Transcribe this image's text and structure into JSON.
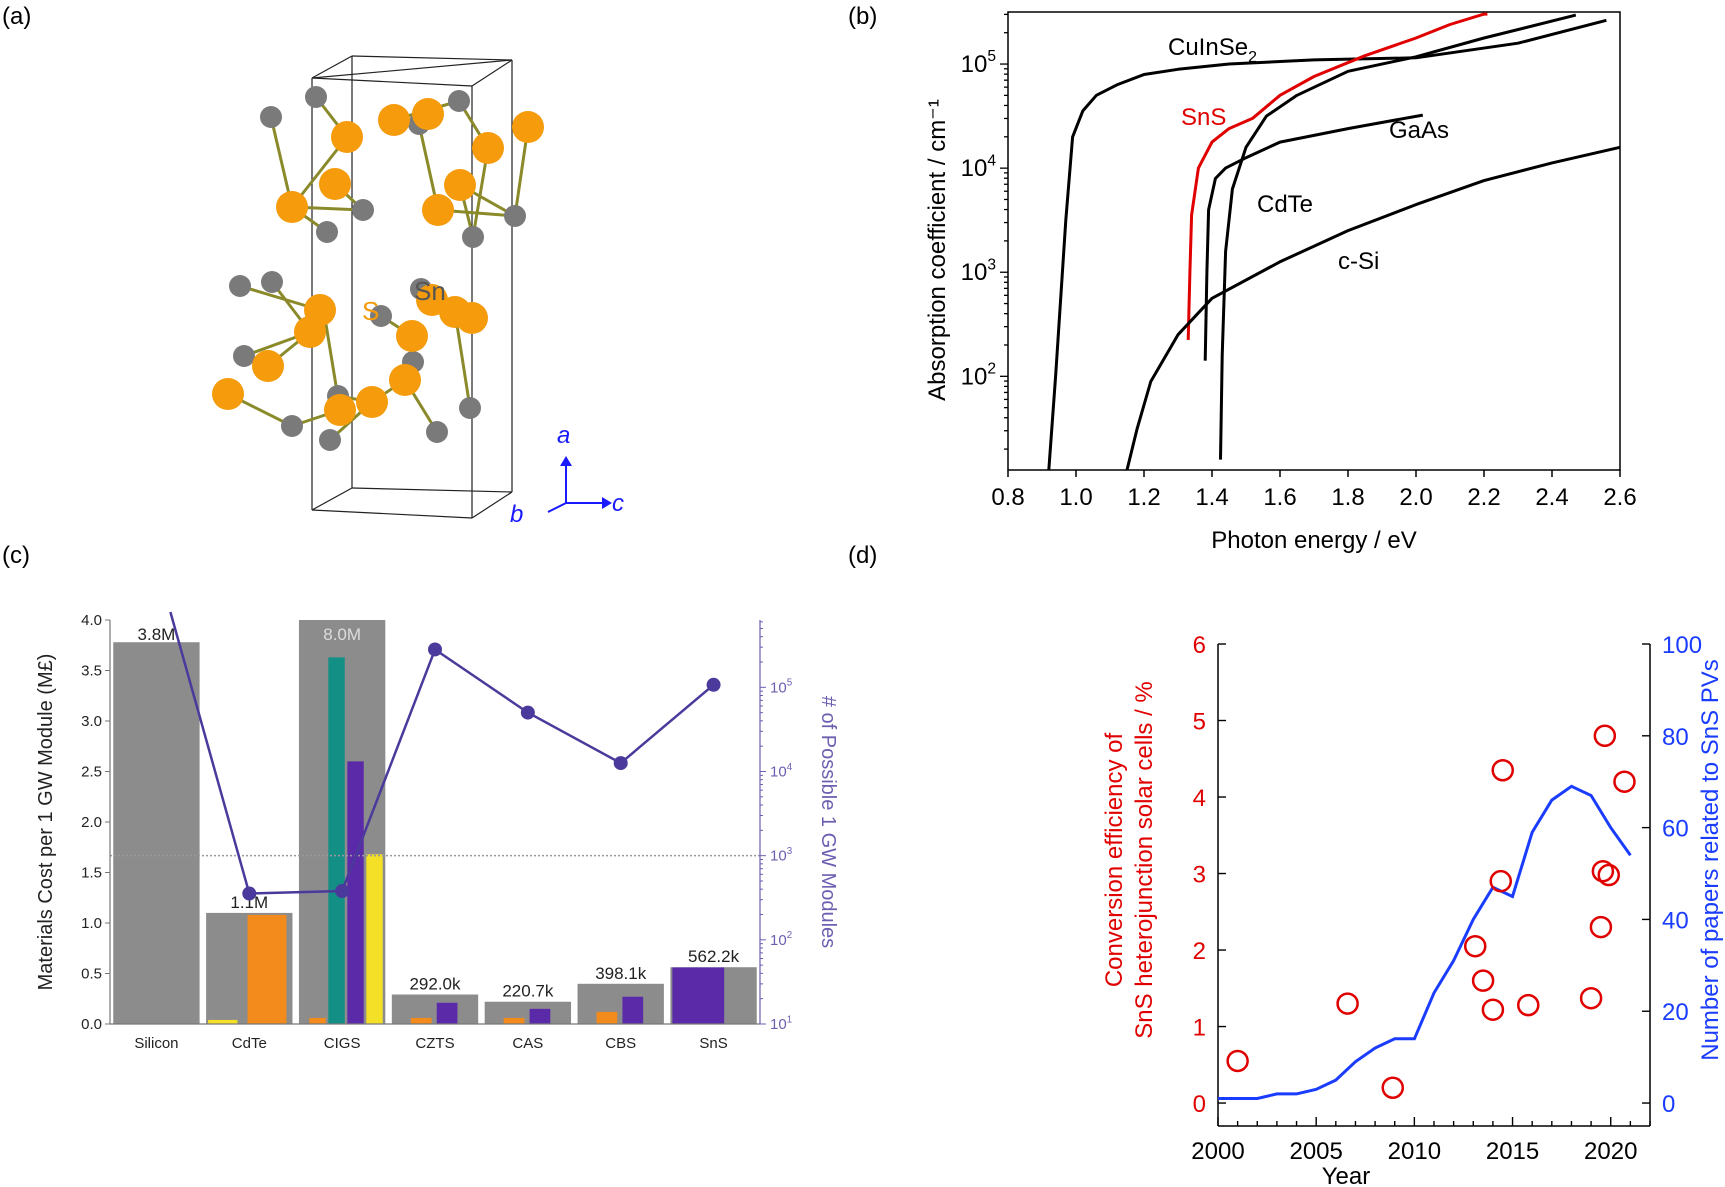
{
  "panel_labels": [
    "(a)",
    "(b)",
    "(c)",
    "(d)"
  ],
  "crystal": {
    "atom_labels": {
      "s": "S",
      "sn": "Sn"
    },
    "axes": {
      "a": "a",
      "b": "b",
      "c": "c"
    },
    "colors": {
      "s": "#f59b0c",
      "sn": "#7a7a7a",
      "bond": "#8b8a2a",
      "axes": "#1a1aff"
    }
  },
  "chart_data": [
    {
      "id": "b",
      "type": "line",
      "xlabel": "Photon energy / eV",
      "ylabel": "Absorption coefficient / cm⁻¹",
      "xlim": [
        0.8,
        2.6
      ],
      "ylim_log10": [
        1.1,
        5.5
      ],
      "yscale": "log",
      "xticks": [
        "0.8",
        "1.0",
        "1.2",
        "1.4",
        "1.6",
        "1.8",
        "2.0",
        "2.2",
        "2.4",
        "2.6"
      ],
      "yticks": [
        {
          "base": "10",
          "exp": "2",
          "v": 2
        },
        {
          "base": "10",
          "exp": "3",
          "v": 3
        },
        {
          "base": "10",
          "exp": "4",
          "v": 4
        },
        {
          "base": "10",
          "exp": "5",
          "v": 5
        }
      ],
      "series": [
        {
          "name": "CuInSe₂",
          "color": "#000000",
          "x": [
            0.92,
            0.94,
            0.97,
            0.99,
            1.02,
            1.06,
            1.12,
            1.2,
            1.3,
            1.45,
            1.7,
            2.0,
            2.3,
            2.56
          ],
          "y": [
            1.1,
            2.0,
            3.5,
            4.3,
            4.55,
            4.7,
            4.8,
            4.9,
            4.95,
            5.0,
            5.04,
            5.06,
            5.2,
            5.42
          ]
        },
        {
          "name": "SnS",
          "color": "#e00000",
          "x": [
            1.33,
            1.335,
            1.34,
            1.36,
            1.4,
            1.45,
            1.52,
            1.6,
            1.7,
            1.85,
            2.0,
            2.1,
            2.2,
            2.21
          ],
          "y": [
            2.35,
            3.0,
            3.55,
            4.0,
            4.25,
            4.38,
            4.48,
            4.7,
            4.88,
            5.08,
            5.25,
            5.38,
            5.48,
            5.48
          ]
        },
        {
          "name": "CdTe",
          "color": "#000000",
          "x": [
            1.38,
            1.385,
            1.39,
            1.41,
            1.44,
            1.5,
            1.6,
            1.8,
            2.02
          ],
          "y": [
            2.15,
            3.0,
            3.6,
            3.9,
            4.0,
            4.1,
            4.25,
            4.38,
            4.51
          ]
        },
        {
          "name": "GaAs",
          "color": "#000000",
          "x": [
            1.425,
            1.43,
            1.44,
            1.46,
            1.5,
            1.56,
            1.65,
            1.8,
            2.0,
            2.2,
            2.47
          ],
          "y": [
            1.2,
            2.2,
            3.2,
            3.8,
            4.2,
            4.5,
            4.7,
            4.93,
            5.07,
            5.25,
            5.47
          ]
        },
        {
          "name": "c-Si",
          "color": "#000000",
          "x": [
            1.15,
            1.18,
            1.22,
            1.3,
            1.4,
            1.6,
            1.8,
            2.0,
            2.2,
            2.4,
            2.6
          ],
          "y": [
            1.1,
            1.5,
            1.95,
            2.4,
            2.75,
            3.1,
            3.4,
            3.65,
            3.88,
            4.05,
            4.2
          ]
        }
      ],
      "annotations": {
        "cuinse2": "CuInSe",
        "cuinse2_sub": "2",
        "sns": "SnS",
        "gaas": "GaAs",
        "cdte": "CdTe",
        "csi": "c-Si"
      }
    },
    {
      "id": "c",
      "type": "bar",
      "ylabel": "Materials Cost per 1 GW Module (M£)",
      "y2label": "# of Possible 1 GW Modules",
      "ylim": [
        0,
        4.0
      ],
      "yticks": [
        "0.0",
        "0.5",
        "1.0",
        "1.5",
        "2.0",
        "2.5",
        "3.0",
        "3.5",
        "4.0"
      ],
      "y2lim_log10": [
        1,
        5.8
      ],
      "y2ticks": [
        {
          "base": "10",
          "exp": "1",
          "v": 1
        },
        {
          "base": "10",
          "exp": "2",
          "v": 2
        },
        {
          "base": "10",
          "exp": "3",
          "v": 3
        },
        {
          "base": "10",
          "exp": "4",
          "v": 4
        },
        {
          "base": "10",
          "exp": "5",
          "v": 5
        }
      ],
      "categories": [
        "Silicon",
        "CdTe",
        "CIGS",
        "CZTS",
        "CAS",
        "CBS",
        "SnS"
      ],
      "totals": [
        3.78,
        1.1,
        4.0,
        0.292,
        0.2207,
        0.3981,
        0.5622
      ],
      "total_labels": [
        "3.8M",
        "1.1M",
        "8.0M",
        "292.0k",
        "220.7k",
        "398.1k",
        "562.2k"
      ],
      "components": [
        [],
        [
          {
            "v": 0.04,
            "c": "#f5e028"
          },
          {
            "v": 1.08,
            "c": "#f28a1c"
          }
        ],
        [
          {
            "v": 0.06,
            "c": "#f28a1c"
          },
          {
            "v": 3.63,
            "c": "#138f85"
          },
          {
            "v": 2.6,
            "c": "#5a2aa8"
          },
          {
            "v": 1.68,
            "c": "#f5e028"
          }
        ],
        [
          {
            "v": 0.06,
            "c": "#f28a1c"
          },
          {
            "v": 0.21,
            "c": "#5a2aa8"
          }
        ],
        [
          {
            "v": 0.06,
            "c": "#f28a1c"
          },
          {
            "v": 0.15,
            "c": "#5a2aa8"
          }
        ],
        [
          {
            "v": 0.12,
            "c": "#f28a1c"
          },
          {
            "v": 0.27,
            "c": "#5a2aa8"
          }
        ],
        [
          {
            "v": 0.56,
            "c": "#5a2aa8"
          }
        ]
      ],
      "modules_log10": [
        6.2,
        2.55,
        2.58,
        5.45,
        4.7,
        4.1,
        5.03
      ],
      "threshold_log10": 3.0,
      "colors": {
        "total": "#8c8c8c",
        "line": "#4b3a9c"
      }
    },
    {
      "id": "d",
      "type": "scatter",
      "xlabel": "Year",
      "ylabel_lines": [
        "Conversion efficiency of",
        "SnS heterojunction solar cells / %"
      ],
      "y2label": "Number of papers related to SnS PVs",
      "xlim": [
        2000,
        2022
      ],
      "ylim": [
        -0.3,
        6
      ],
      "xticks": [
        "2000",
        "2005",
        "2010",
        "2015",
        "2020"
      ],
      "yticks": [
        "0",
        "1",
        "2",
        "3",
        "4",
        "5",
        "6"
      ],
      "y2lim": [
        -5,
        100
      ],
      "y2ticks": [
        "0",
        "20",
        "40",
        "60",
        "80",
        "100"
      ],
      "efficiency": {
        "color": "#e00000",
        "x": [
          2001,
          2006.6,
          2008.9,
          2013.1,
          2013.5,
          2014,
          2014.4,
          2014.5,
          2015.8,
          2019,
          2019.5,
          2019.6,
          2019.7,
          2019.9,
          2020.7
        ],
        "y": [
          0.55,
          1.3,
          0.2,
          2.05,
          1.6,
          1.22,
          2.9,
          4.35,
          1.28,
          1.37,
          2.3,
          3.03,
          4.8,
          2.98,
          4.2
        ]
      },
      "papers": {
        "color": "#1a3cff",
        "x": [
          2000,
          2001,
          2002,
          2003,
          2004,
          2005,
          2006,
          2007,
          2008,
          2009,
          2010,
          2011,
          2012,
          2013,
          2014,
          2015,
          2016,
          2017,
          2018,
          2019,
          2020,
          2021
        ],
        "y": [
          1,
          1,
          1,
          2,
          2,
          3,
          5,
          9,
          12,
          14,
          14,
          24,
          31,
          40,
          47,
          45,
          59,
          66,
          69,
          67,
          60,
          54
        ]
      }
    }
  ]
}
